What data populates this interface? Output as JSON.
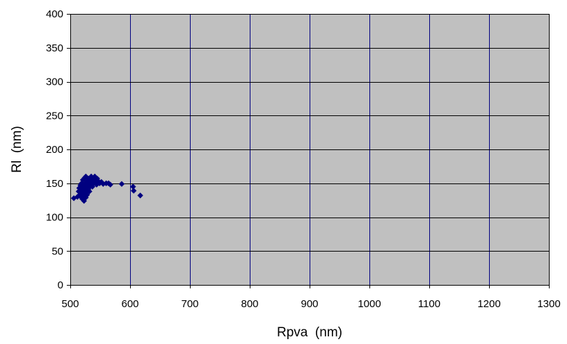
{
  "chart_data": {
    "type": "scatter",
    "title": "",
    "xlabel": "Rpva  (nm)",
    "ylabel": "Rl  (nm)",
    "xlim": [
      500,
      1300
    ],
    "ylim": [
      0,
      400
    ],
    "x_ticks": [
      500,
      600,
      700,
      800,
      900,
      1000,
      1100,
      1200,
      1300
    ],
    "y_ticks": [
      0,
      50,
      100,
      150,
      200,
      250,
      300,
      350,
      400
    ],
    "grid": true,
    "legend": "none",
    "colors": {
      "plot_background": "#c0c0c0",
      "vertical_gridline": "#000080",
      "horizontal_gridline": "#000000",
      "marker": "#000080"
    },
    "series": [
      {
        "marker": "diamond",
        "points": [
          [
            506,
            128
          ],
          [
            512,
            130
          ],
          [
            514,
            138
          ],
          [
            515,
            143
          ],
          [
            516,
            133
          ],
          [
            517,
            147
          ],
          [
            518,
            140
          ],
          [
            518,
            130
          ],
          [
            519,
            136
          ],
          [
            519,
            150
          ],
          [
            520,
            145
          ],
          [
            520,
            127
          ],
          [
            521,
            140
          ],
          [
            521,
            155
          ],
          [
            522,
            132
          ],
          [
            522,
            148
          ],
          [
            523,
            143
          ],
          [
            523,
            124
          ],
          [
            524,
            158
          ],
          [
            524,
            136
          ],
          [
            525,
            150
          ],
          [
            525,
            142
          ],
          [
            526,
            129
          ],
          [
            526,
            160
          ],
          [
            527,
            145
          ],
          [
            527,
            138
          ],
          [
            528,
            153
          ],
          [
            528,
            133
          ],
          [
            529,
            147
          ],
          [
            530,
            141
          ],
          [
            530,
            157
          ],
          [
            531,
            150
          ],
          [
            532,
            144
          ],
          [
            532,
            138
          ],
          [
            533,
            155
          ],
          [
            534,
            148
          ],
          [
            535,
            160
          ],
          [
            536,
            152
          ],
          [
            537,
            145
          ],
          [
            538,
            157
          ],
          [
            539,
            150
          ],
          [
            540,
            155
          ],
          [
            541,
            160
          ],
          [
            542,
            152
          ],
          [
            544,
            148
          ],
          [
            545,
            157
          ],
          [
            547,
            153
          ],
          [
            549,
            150
          ],
          [
            552,
            152
          ],
          [
            555,
            149
          ],
          [
            560,
            150
          ],
          [
            564,
            150
          ],
          [
            567,
            148
          ],
          [
            586,
            149
          ],
          [
            605,
            145
          ],
          [
            606,
            139
          ],
          [
            617,
            132
          ]
        ]
      }
    ]
  }
}
